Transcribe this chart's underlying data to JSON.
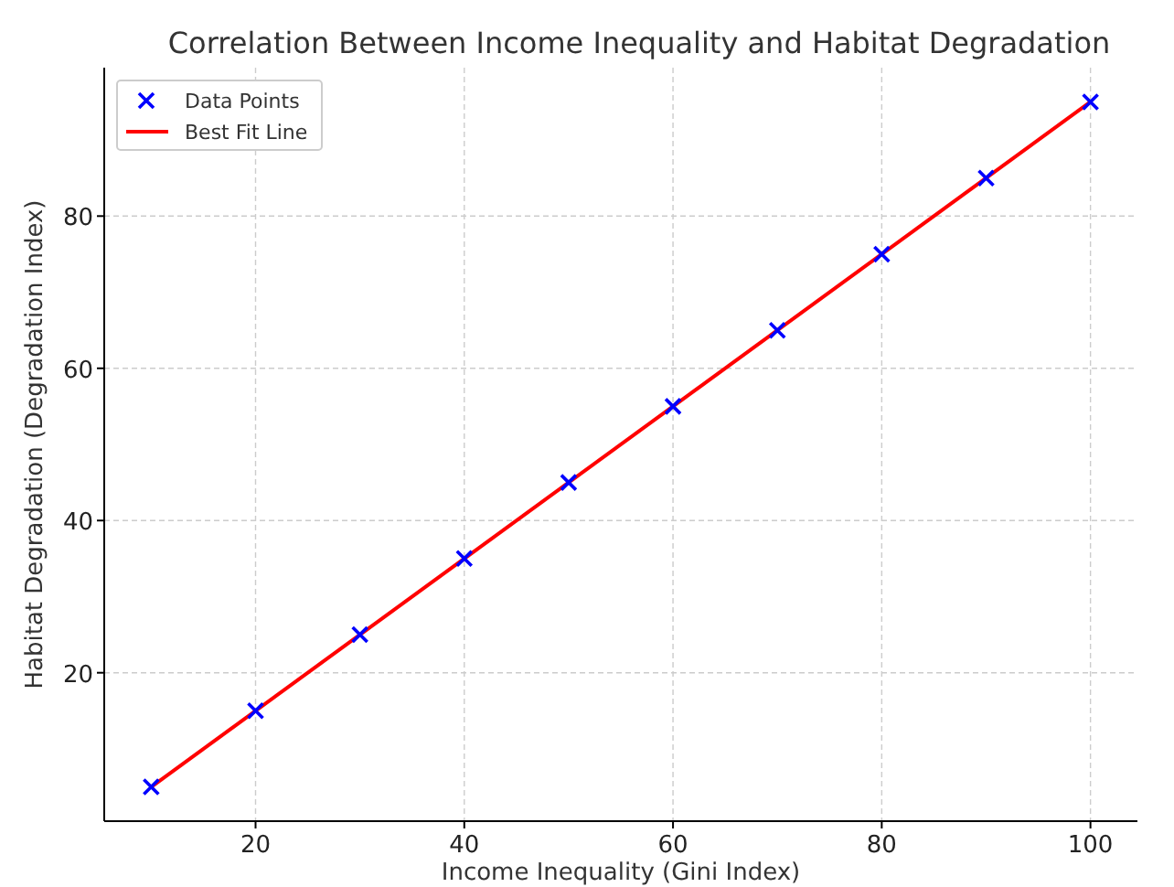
{
  "chart_data": {
    "type": "scatter",
    "title": "Correlation Between Income Inequality and Habitat Degradation",
    "xlabel": "Income Inequality (Gini Index)",
    "ylabel": "Habitat Degradation (Degradation Index)",
    "x": [
      10,
      20,
      30,
      40,
      50,
      60,
      70,
      80,
      90,
      100
    ],
    "series": [
      {
        "name": "Data Points",
        "color": "#0000ff",
        "marker": "cross",
        "values": [
          5,
          15,
          25,
          35,
          45,
          55,
          65,
          75,
          85,
          95
        ]
      },
      {
        "name": "Best Fit Line",
        "type": "line",
        "color": "#ff0000",
        "marker": "none",
        "line_style": "solid",
        "x": [
          10,
          100
        ],
        "values": [
          5,
          95
        ]
      }
    ],
    "xlim": [
      5.5,
      104.5
    ],
    "ylim": [
      0.5,
      99.5
    ],
    "xticks": [
      20,
      40,
      60,
      80,
      100
    ],
    "yticks": [
      20,
      40,
      60,
      80
    ],
    "grid": true,
    "legend": "top left"
  }
}
